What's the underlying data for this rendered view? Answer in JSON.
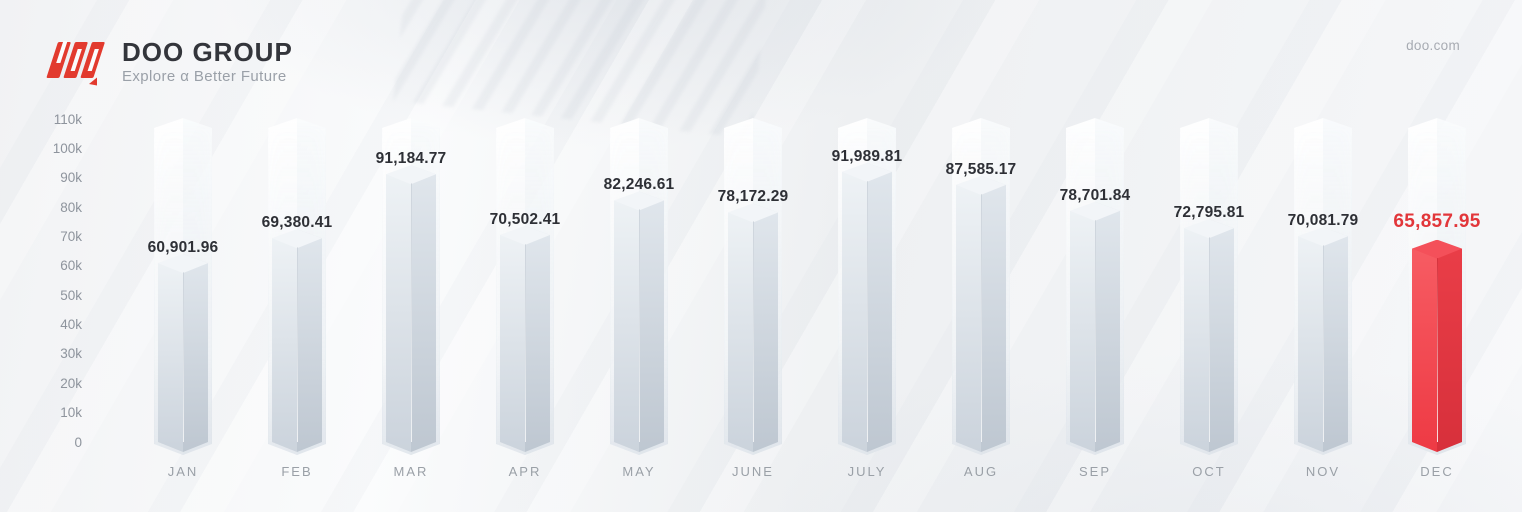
{
  "brand": {
    "name": "DOO GROUP",
    "tagline": "Explore α Better Future",
    "website": "doo.com",
    "logo_color": "#e23a2e",
    "icon": "doo-logo-icon"
  },
  "chart_data": {
    "type": "bar",
    "title": "",
    "xlabel": "",
    "ylabel": "",
    "categories": [
      "JAN",
      "FEB",
      "MAR",
      "APR",
      "MAY",
      "JUNE",
      "JULY",
      "AUG",
      "SEP",
      "OCT",
      "NOV",
      "DEC"
    ],
    "values": [
      60901.96,
      69380.41,
      91184.77,
      70502.41,
      82246.61,
      78172.29,
      91989.81,
      87585.17,
      78701.84,
      72795.81,
      70081.79,
      65857.95
    ],
    "value_labels": [
      "60,901.96",
      "69,380.41",
      "91,184.77",
      "70,502.41",
      "82,246.61",
      "78,172.29",
      "91,989.81",
      "87,585.17",
      "78,701.84",
      "72,795.81",
      "70,081.79",
      "65,857.95"
    ],
    "yticks": [
      "110k",
      "100k",
      "90k",
      "80k",
      "70k",
      "60k",
      "50k",
      "40k",
      "30k",
      "20k",
      "10k",
      "0"
    ],
    "ylim": [
      0,
      110000
    ],
    "grid": false,
    "legend": "none",
    "highlight": {
      "index": 11,
      "category": "DEC",
      "label_color": "#e2363a"
    },
    "colors": {
      "value_label": "#2e3036",
      "axis_label": "#8e949d",
      "month_label": "#9aa0a7",
      "bar_left_top": "#eff3f6",
      "bar_left_bottom": "#cbd3dc",
      "bar_right_top": "#e1e7ed",
      "bar_right_bottom": "#bec7d1",
      "bar_cap": "#f2f5f8",
      "red_left_top": "#f75d64",
      "red_left_bottom": "#ee3a44",
      "red_right_top": "#ea3e48",
      "red_right_bottom": "#d7303b",
      "red_cap": "#f4505a"
    }
  }
}
